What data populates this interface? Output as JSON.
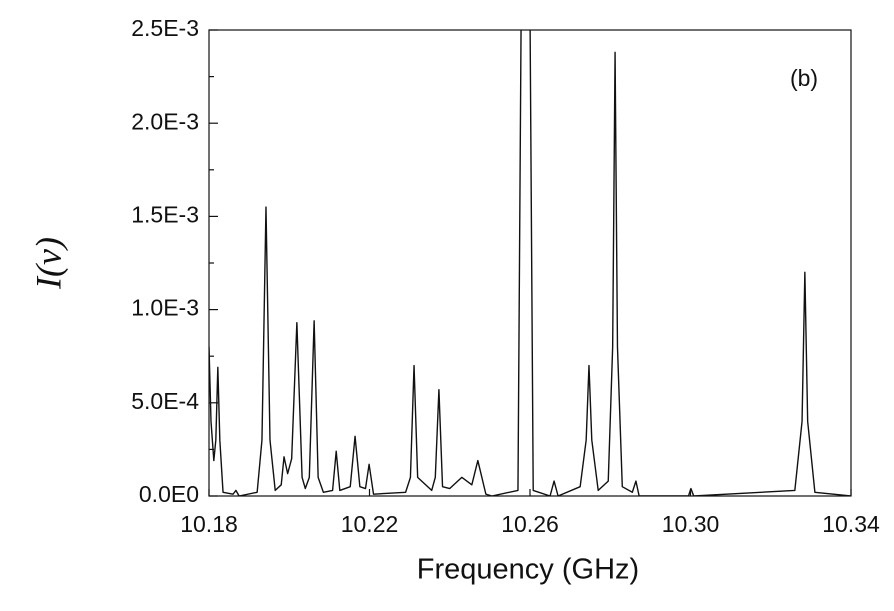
{
  "chart_data": {
    "type": "line",
    "xlabel": "Frequency (GHz)",
    "ylabel": "I(ν)",
    "annotation": "(b)",
    "color": "#111111",
    "xlim": [
      10.18,
      10.34
    ],
    "ylim": [
      0,
      0.0025
    ],
    "xticks": [
      10.18,
      10.22,
      10.26,
      {
        "value": 10.3,
        "label": "10.30"
      },
      10.34
    ],
    "yticks": [
      {
        "value": 0,
        "label": "0.0E0"
      },
      {
        "value": 0.0005,
        "label": "5.0E-4"
      },
      {
        "value": 0.001,
        "label": "1.0E-3"
      },
      {
        "value": 0.0015,
        "label": "1.5E-3"
      },
      {
        "value": 0.002,
        "label": "2.0E-3"
      },
      {
        "value": 0.0025,
        "label": "2.5E-3"
      }
    ],
    "x": [
      10.18,
      10.1805,
      10.1812,
      10.1817,
      10.1822,
      10.1827,
      10.1835,
      10.186,
      10.1867,
      10.1875,
      10.192,
      10.1932,
      10.1942,
      10.1952,
      10.1965,
      10.198,
      10.1987,
      10.1996,
      10.2006,
      10.2019,
      10.2032,
      10.204,
      10.205,
      10.2062,
      10.2072,
      10.2085,
      10.2108,
      10.2117,
      10.2126,
      10.2152,
      10.2164,
      10.2176,
      10.219,
      10.2199,
      10.221,
      10.229,
      10.2302,
      10.2311,
      10.232,
      10.2355,
      10.2364,
      10.2373,
      10.2382,
      10.24,
      10.243,
      10.2455,
      10.247,
      10.249,
      10.2505,
      10.257,
      10.2578,
      10.26,
      10.2608,
      10.265,
      10.266,
      10.267,
      10.2725,
      10.274,
      10.2747,
      10.2754,
      10.277,
      10.2795,
      10.2806,
      10.2812,
      10.2818,
      10.283,
      10.2855,
      10.2864,
      10.2872,
      10.2995,
      10.3001,
      10.3008,
      10.326,
      10.3278,
      10.3285,
      10.3292,
      10.331,
      10.34
    ],
    "values": [
      0.0008,
      0.0004,
      0.00019,
      0.0003,
      0.00069,
      0.0003,
      2e-05,
      1e-05,
      3e-05,
      0,
      2e-05,
      0.0003,
      0.00155,
      0.0003,
      3e-05,
      6e-05,
      0.00021,
      0.00012,
      0.0002,
      0.00093,
      0.0001,
      4e-05,
      0.0001,
      0.00094,
      0.0001,
      2e-05,
      3e-05,
      0.00024,
      3e-05,
      5e-05,
      0.00032,
      5e-05,
      4e-05,
      0.00017,
      1e-05,
      2e-05,
      0.0001,
      0.0007,
      0.0001,
      3e-05,
      0.0001,
      0.00057,
      5e-05,
      4e-05,
      0.0001,
      6e-05,
      0.00019,
      1e-05,
      0,
      3e-05,
      0.0026,
      0.0026,
      3e-05,
      0,
      8e-05,
      0,
      5e-05,
      0.0003,
      0.0007,
      0.0003,
      3e-05,
      8e-05,
      0.0008,
      0.00238,
      0.0008,
      5e-05,
      2e-05,
      8e-05,
      0,
      0,
      4e-05,
      0,
      3e-05,
      0.0004,
      0.0012,
      0.0004,
      2e-05,
      0
    ]
  }
}
